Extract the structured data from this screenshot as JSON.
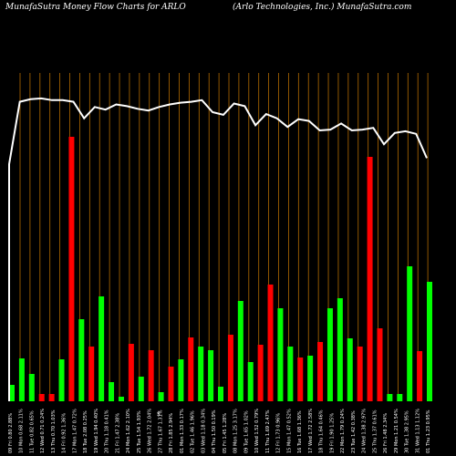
{
  "header": {
    "title_left": "MunafaSutra  Money  Flow   Charts for ARLO",
    "title_right": "(Arlo   Technologies,  Inc.)  MunafaSutra.com"
  },
  "colors": {
    "background": "#000000",
    "up_bar": "#00ff00",
    "down_bar": "#ff0000",
    "grid": "#b36b00",
    "line": "#ffffff"
  },
  "chart_data": {
    "type": "bar",
    "title": "MunafaSutra  Money  Flow   Charts for ARLO",
    "subtitle": "(Arlo   Technologies,  Inc.)  MunafaSutra.com",
    "xlabel": "",
    "ylabel": "",
    "grid": true,
    "center_marker": "$",
    "categories": [
      "09 Fri 0.80 2.88%",
      "10 Mon 0.68 2.11%",
      "11 Tue 0.82 0.65%",
      "12 Wed 0.71 0.24%",
      "13 Thu 0.70 1.03%",
      "14 Fri 0.92 1.36%",
      "17 Mon 1.47 0.72%",
      "18 Tue 2.08 0.25%",
      "19 Wed 1.94 0.40%",
      "20 Thu 1.18 0.41%",
      "21 Fri 1.47 2.38%",
      "24 Mon 1.62 2.10%",
      "25 Tue 1.54 1.93%",
      "26 Wed 1.72 2.04%",
      "27 Thu 1.67 1.31%",
      "28 Fri 1.85 2.94%",
      "01 Mon 1.33 0.17%",
      "02 Tue 1.46 1.96%",
      "03 Wed 1.18 0.34%",
      "04 Thu 1.50 0.19%",
      "05 Fri 1.45 1.28%",
      "08 Mon 1.25 3.17%",
      "09 Tue 1.65 1.02%",
      "10 Wed 1.52 0.79%",
      "11 Thu 1.69 2.47%",
      "12 Fri 1.73 0.96%",
      "15 Mon 1.47 0.52%",
      "16 Tue 1.68 1.36%",
      "17 Wed 1.72 2.58%",
      "18 Thu 1.64 0.46%",
      "19 Fri 1.90 1.25%",
      "22 Mon 1.79 0.24%",
      "23 Tue 1.42 0.38%",
      "24 Wed 1.38 2.97%",
      "25 Thu 1.37 0.61%",
      "26 Fri 1.48 2.34%",
      "29 Mon 1.21 0.54%",
      "30 Tue 1.38 2.95%",
      "31 Wed 1.13 1.12%",
      "01 Thu 1.23 0.95%"
    ],
    "series": [
      {
        "values": [
          18,
          47,
          30,
          8,
          8,
          46,
          290,
          90,
          60,
          115,
          21,
          5,
          63,
          27,
          56,
          10,
          38,
          46,
          70,
          60,
          56,
          16,
          73,
          110,
          43,
          62,
          128,
          102,
          60,
          48,
          50,
          65,
          102,
          113,
          69,
          60,
          268,
          80,
          8,
          8
        ],
        "direction": [
          "up",
          "up",
          "up",
          "down",
          "down",
          "up",
          "down",
          "up",
          "down",
          "up",
          "up",
          "up",
          "down",
          "up",
          "down",
          "up",
          "down",
          "up",
          "down",
          "up",
          "up",
          "up",
          "down",
          "up",
          "up",
          "down",
          "down",
          "up",
          "up",
          "down",
          "up",
          "down",
          "up",
          "up",
          "up",
          "down",
          "down",
          "down",
          "up",
          "up"
        ]
      }
    ],
    "extra_bars": [
      {
        "direction": "up",
        "value": 148
      },
      {
        "direction": "down",
        "value": 55
      },
      {
        "direction": "up",
        "value": 131
      }
    ],
    "line_values": [
      21,
      93,
      96,
      97,
      95,
      95,
      93,
      74,
      87,
      84,
      90,
      88,
      85,
      83,
      87,
      90,
      92,
      93,
      95,
      81,
      78,
      91,
      88,
      66,
      79,
      74,
      64,
      73,
      71,
      60,
      61,
      68,
      60,
      61,
      63,
      44,
      57,
      59,
      56,
      28
    ]
  }
}
